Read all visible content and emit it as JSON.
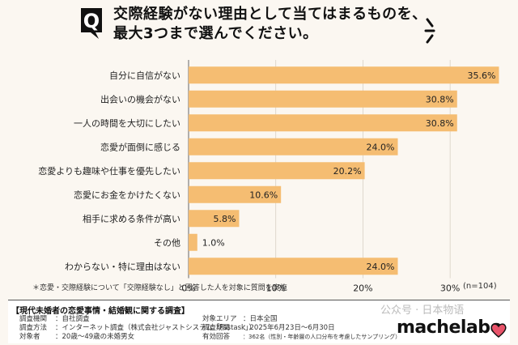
{
  "header": {
    "q_letter": "Q",
    "title_line1": "交際経験がない理由として当てはまるものを、",
    "title_line2": "最大3つまで選んでください。"
  },
  "chart_data": {
    "type": "bar",
    "orientation": "horizontal",
    "categories": [
      "自分に自信がない",
      "出会いの機会がない",
      "一人の時間を大切にしたい",
      "恋愛が面倒に感じる",
      "恋愛よりも趣味や仕事を優先したい",
      "恋愛にお金をかけたくない",
      "相手に求める条件が高い",
      "その他",
      "わからない・特に理由はない"
    ],
    "values": [
      35.6,
      30.8,
      30.8,
      24.0,
      20.2,
      10.6,
      5.8,
      1.0,
      24.0
    ],
    "value_labels": [
      "35.6%",
      "30.8%",
      "30.8%",
      "24.0%",
      "20.2%",
      "10.6%",
      "5.8%",
      "1.0%",
      "24.0%"
    ],
    "xlim": [
      0,
      35
    ],
    "x_ticks": [
      0,
      10,
      20,
      30
    ],
    "x_tick_labels": [
      "0%",
      "10%",
      "20%",
      "30%"
    ],
    "grid": true,
    "bar_color": "#f5bd72"
  },
  "footnote": "＊恋愛・交際経験について「交際経験なし」と回答した人を対象に質問を実施",
  "sample_size": "(n=104)",
  "survey_info": {
    "title": "【現代未婚者の恋愛事情・結婚観に関する調査】",
    "left": [
      {
        "key": "調査機関",
        "value": "：自社調査"
      },
      {
        "key": "調査方法",
        "value": "：インターネット調査（株式会社ジャストシステム「Fastask」）"
      },
      {
        "key": "対象者",
        "value": "：20歳〜49歳の未婚男女"
      }
    ],
    "right": [
      {
        "key": "対象エリア",
        "value": "：日本全国"
      },
      {
        "key": "調査期間",
        "value": "：2025年6月23日〜6月30日"
      },
      {
        "key": "有効回答",
        "value": "：362名（性別・年齢層の人口分布を考慮したサンプリング）"
      }
    ]
  },
  "watermark": "公众号 · 日本物语",
  "logo_text": "machelabo"
}
